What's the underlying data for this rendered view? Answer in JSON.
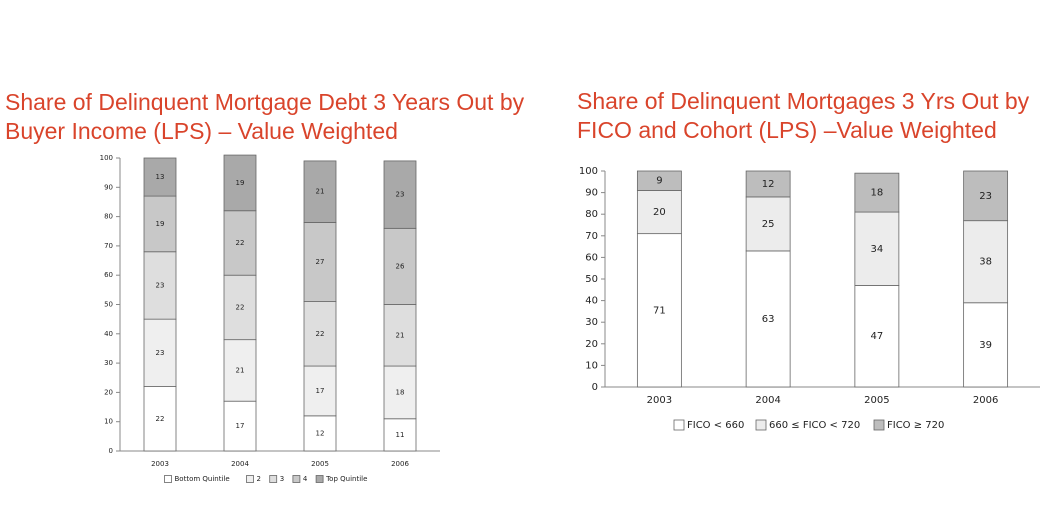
{
  "chart_data": [
    {
      "type": "stacked_bar",
      "title": "Share of Delinquent Mortgage Debt 3 Years Out by Buyer Income (LPS) – Value Weighted",
      "categories": [
        "2003",
        "2004",
        "2005",
        "2006"
      ],
      "series": [
        {
          "name": "Bottom Quintile",
          "color": "#ffffff",
          "values": [
            22,
            17,
            12,
            11
          ]
        },
        {
          "name": "2",
          "color": "#efefef",
          "values": [
            23,
            21,
            17,
            18
          ]
        },
        {
          "name": "3",
          "color": "#dedede",
          "values": [
            23,
            22,
            22,
            21
          ]
        },
        {
          "name": "4",
          "color": "#c8c8c8",
          "values": [
            19,
            22,
            27,
            26
          ]
        },
        {
          "name": "Top Quintile",
          "color": "#a9a9a9",
          "values": [
            13,
            19,
            21,
            23
          ]
        }
      ],
      "ylim": [
        0,
        100
      ],
      "yticks": [
        0,
        10,
        20,
        30,
        40,
        50,
        60,
        70,
        80,
        90,
        100
      ],
      "legend": "bottom"
    },
    {
      "type": "stacked_bar",
      "title": "Share of Delinquent Mortgages 3 Yrs Out by FICO and Cohort (LPS) –Value Weighted",
      "categories": [
        "2003",
        "2004",
        "2005",
        "2006"
      ],
      "series": [
        {
          "name": "FICO < 660",
          "color": "#ffffff",
          "values": [
            71,
            63,
            47,
            39
          ]
        },
        {
          "name": "660 ≤ FICO < 720",
          "color": "#ececec",
          "values": [
            20,
            25,
            34,
            38
          ]
        },
        {
          "name": "FICO ≥ 720",
          "color": "#bdbdbd",
          "values": [
            9,
            12,
            18,
            23
          ]
        }
      ],
      "ylim": [
        0,
        100
      ],
      "yticks": [
        0,
        10,
        20,
        30,
        40,
        50,
        60,
        70,
        80,
        90,
        100
      ],
      "legend": "bottom"
    }
  ]
}
